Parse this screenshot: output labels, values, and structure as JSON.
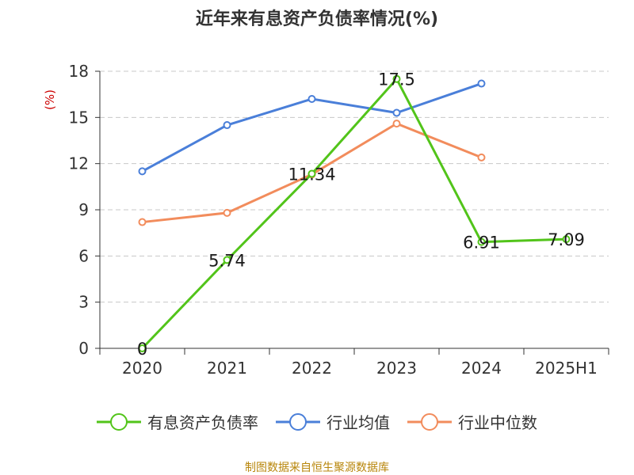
{
  "title": "近年来有息资产负债率情况(%)",
  "source": "制图数据来自恒生聚源数据库",
  "chart_data": {
    "type": "line",
    "categories": [
      "2020",
      "2021",
      "2022",
      "2023",
      "2024",
      "2025H1"
    ],
    "ylabel": "(%)",
    "ylim": [
      0,
      18
    ],
    "yticks": [
      0,
      3,
      6,
      9,
      12,
      15,
      18
    ],
    "grid": true,
    "legend_position": "bottom",
    "series": [
      {
        "name": "有息资产负债率",
        "color": "#52c41a",
        "values": [
          0,
          5.74,
          11.34,
          17.5,
          6.91,
          7.09
        ],
        "data_labels": [
          "0",
          "5.74",
          "11.34",
          "17.5",
          "6.91",
          "7.09"
        ]
      },
      {
        "name": "行业均值",
        "color": "#4a7fd9",
        "values": [
          11.5,
          14.5,
          16.2,
          15.3,
          17.2,
          null
        ]
      },
      {
        "name": "行业中位数",
        "color": "#f28c5c",
        "values": [
          8.2,
          8.8,
          11.3,
          14.6,
          12.4,
          null
        ]
      }
    ]
  }
}
